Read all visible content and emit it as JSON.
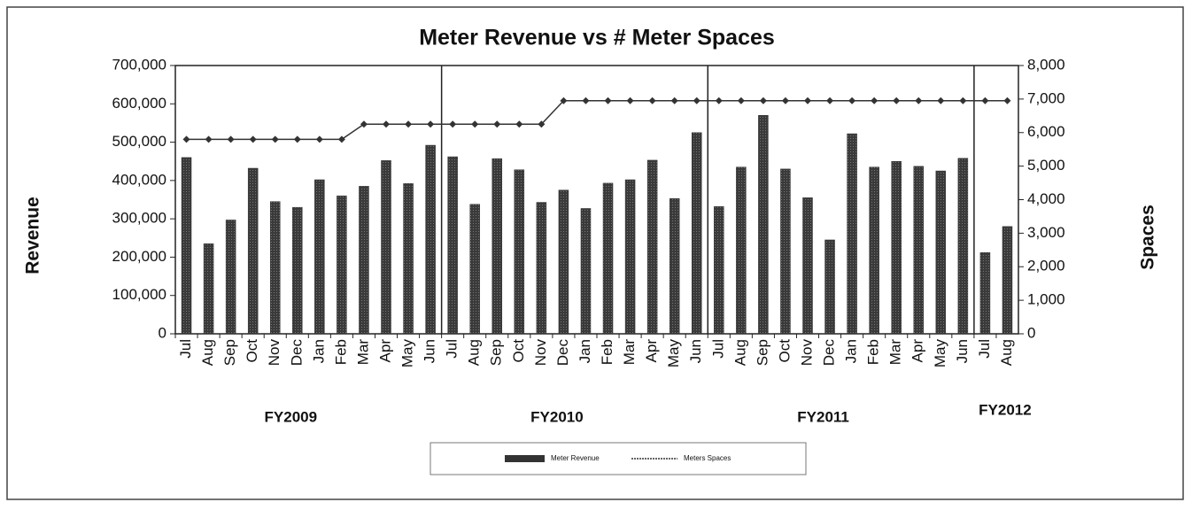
{
  "chart_data": {
    "type": "bar",
    "title": "Meter Revenue vs # Meter Spaces",
    "y_label": "Revenue",
    "y2_label": "Spaces",
    "categories": [
      "Jul",
      "Aug",
      "Sep",
      "Oct",
      "Nov",
      "Dec",
      "Jan",
      "Feb",
      "Mar",
      "Apr",
      "May",
      "Jun",
      "Jul",
      "Aug",
      "Sep",
      "Oct",
      "Nov",
      "Dec",
      "Jan",
      "Feb",
      "Mar",
      "Apr",
      "May",
      "Jun",
      "Jul",
      "Aug",
      "Sep",
      "Oct",
      "Nov",
      "Dec",
      "Jan",
      "Feb",
      "Mar",
      "Apr",
      "May",
      "Jun",
      "Jul",
      "Aug"
    ],
    "groups": [
      "FY2009",
      "FY2010",
      "FY2011",
      "FY2012"
    ],
    "series": [
      {
        "name": "Meter Revenue",
        "type": "bar",
        "color": "#333333",
        "values": [
          460000,
          235000,
          297000,
          432000,
          345000,
          330000,
          402000,
          360000,
          385000,
          452000,
          392000,
          492000,
          462000,
          338000,
          457000,
          428000,
          343000,
          375000,
          327000,
          393000,
          402000,
          453000,
          353000,
          525000,
          332000,
          435000,
          570000,
          430000,
          355000,
          245000,
          522000,
          435000,
          450000,
          437000,
          425000,
          458000,
          212000,
          280000
        ]
      },
      {
        "name": "Meters Spaces",
        "type": "line",
        "axis": "y2",
        "color": "#333333",
        "values": [
          5800,
          5800,
          5800,
          5800,
          5800,
          5800,
          5800,
          5800,
          6250,
          6250,
          6250,
          6250,
          6250,
          6250,
          6250,
          6250,
          6250,
          6950,
          6950,
          6950,
          6950,
          6950,
          6950,
          6950,
          6950,
          6950,
          6950,
          6950,
          6950,
          6950,
          6950,
          6950,
          6950,
          6950,
          6950,
          6950,
          6950,
          6950
        ]
      }
    ],
    "ylim": [
      0,
      700000
    ],
    "yticks": [
      0,
      {
        "value": 100000,
        "label": "100,000"
      },
      {
        "value": 200000,
        "label": "200,000"
      },
      {
        "value": 300000,
        "label": "300,000"
      },
      {
        "value": 400000,
        "label": "400,000"
      },
      {
        "value": 500000,
        "label": "500,000"
      },
      {
        "value": 600000,
        "label": "600,000"
      },
      {
        "value": 700000,
        "label": "700,000"
      }
    ],
    "y2lim": [
      0,
      8000
    ],
    "y2ticks": [
      0,
      {
        "value": 1000,
        "label": "1,000"
      },
      {
        "value": 2000,
        "label": "2,000"
      },
      {
        "value": 3000,
        "label": "3,000"
      },
      {
        "value": 4000,
        "label": "4,000"
      },
      {
        "value": 5000,
        "label": "5,000"
      },
      {
        "value": 6000,
        "label": "6,000"
      },
      {
        "value": 7000,
        "label": "7,000"
      },
      {
        "value": 8000,
        "label": "8,000"
      }
    ],
    "legend": "bottom"
  }
}
